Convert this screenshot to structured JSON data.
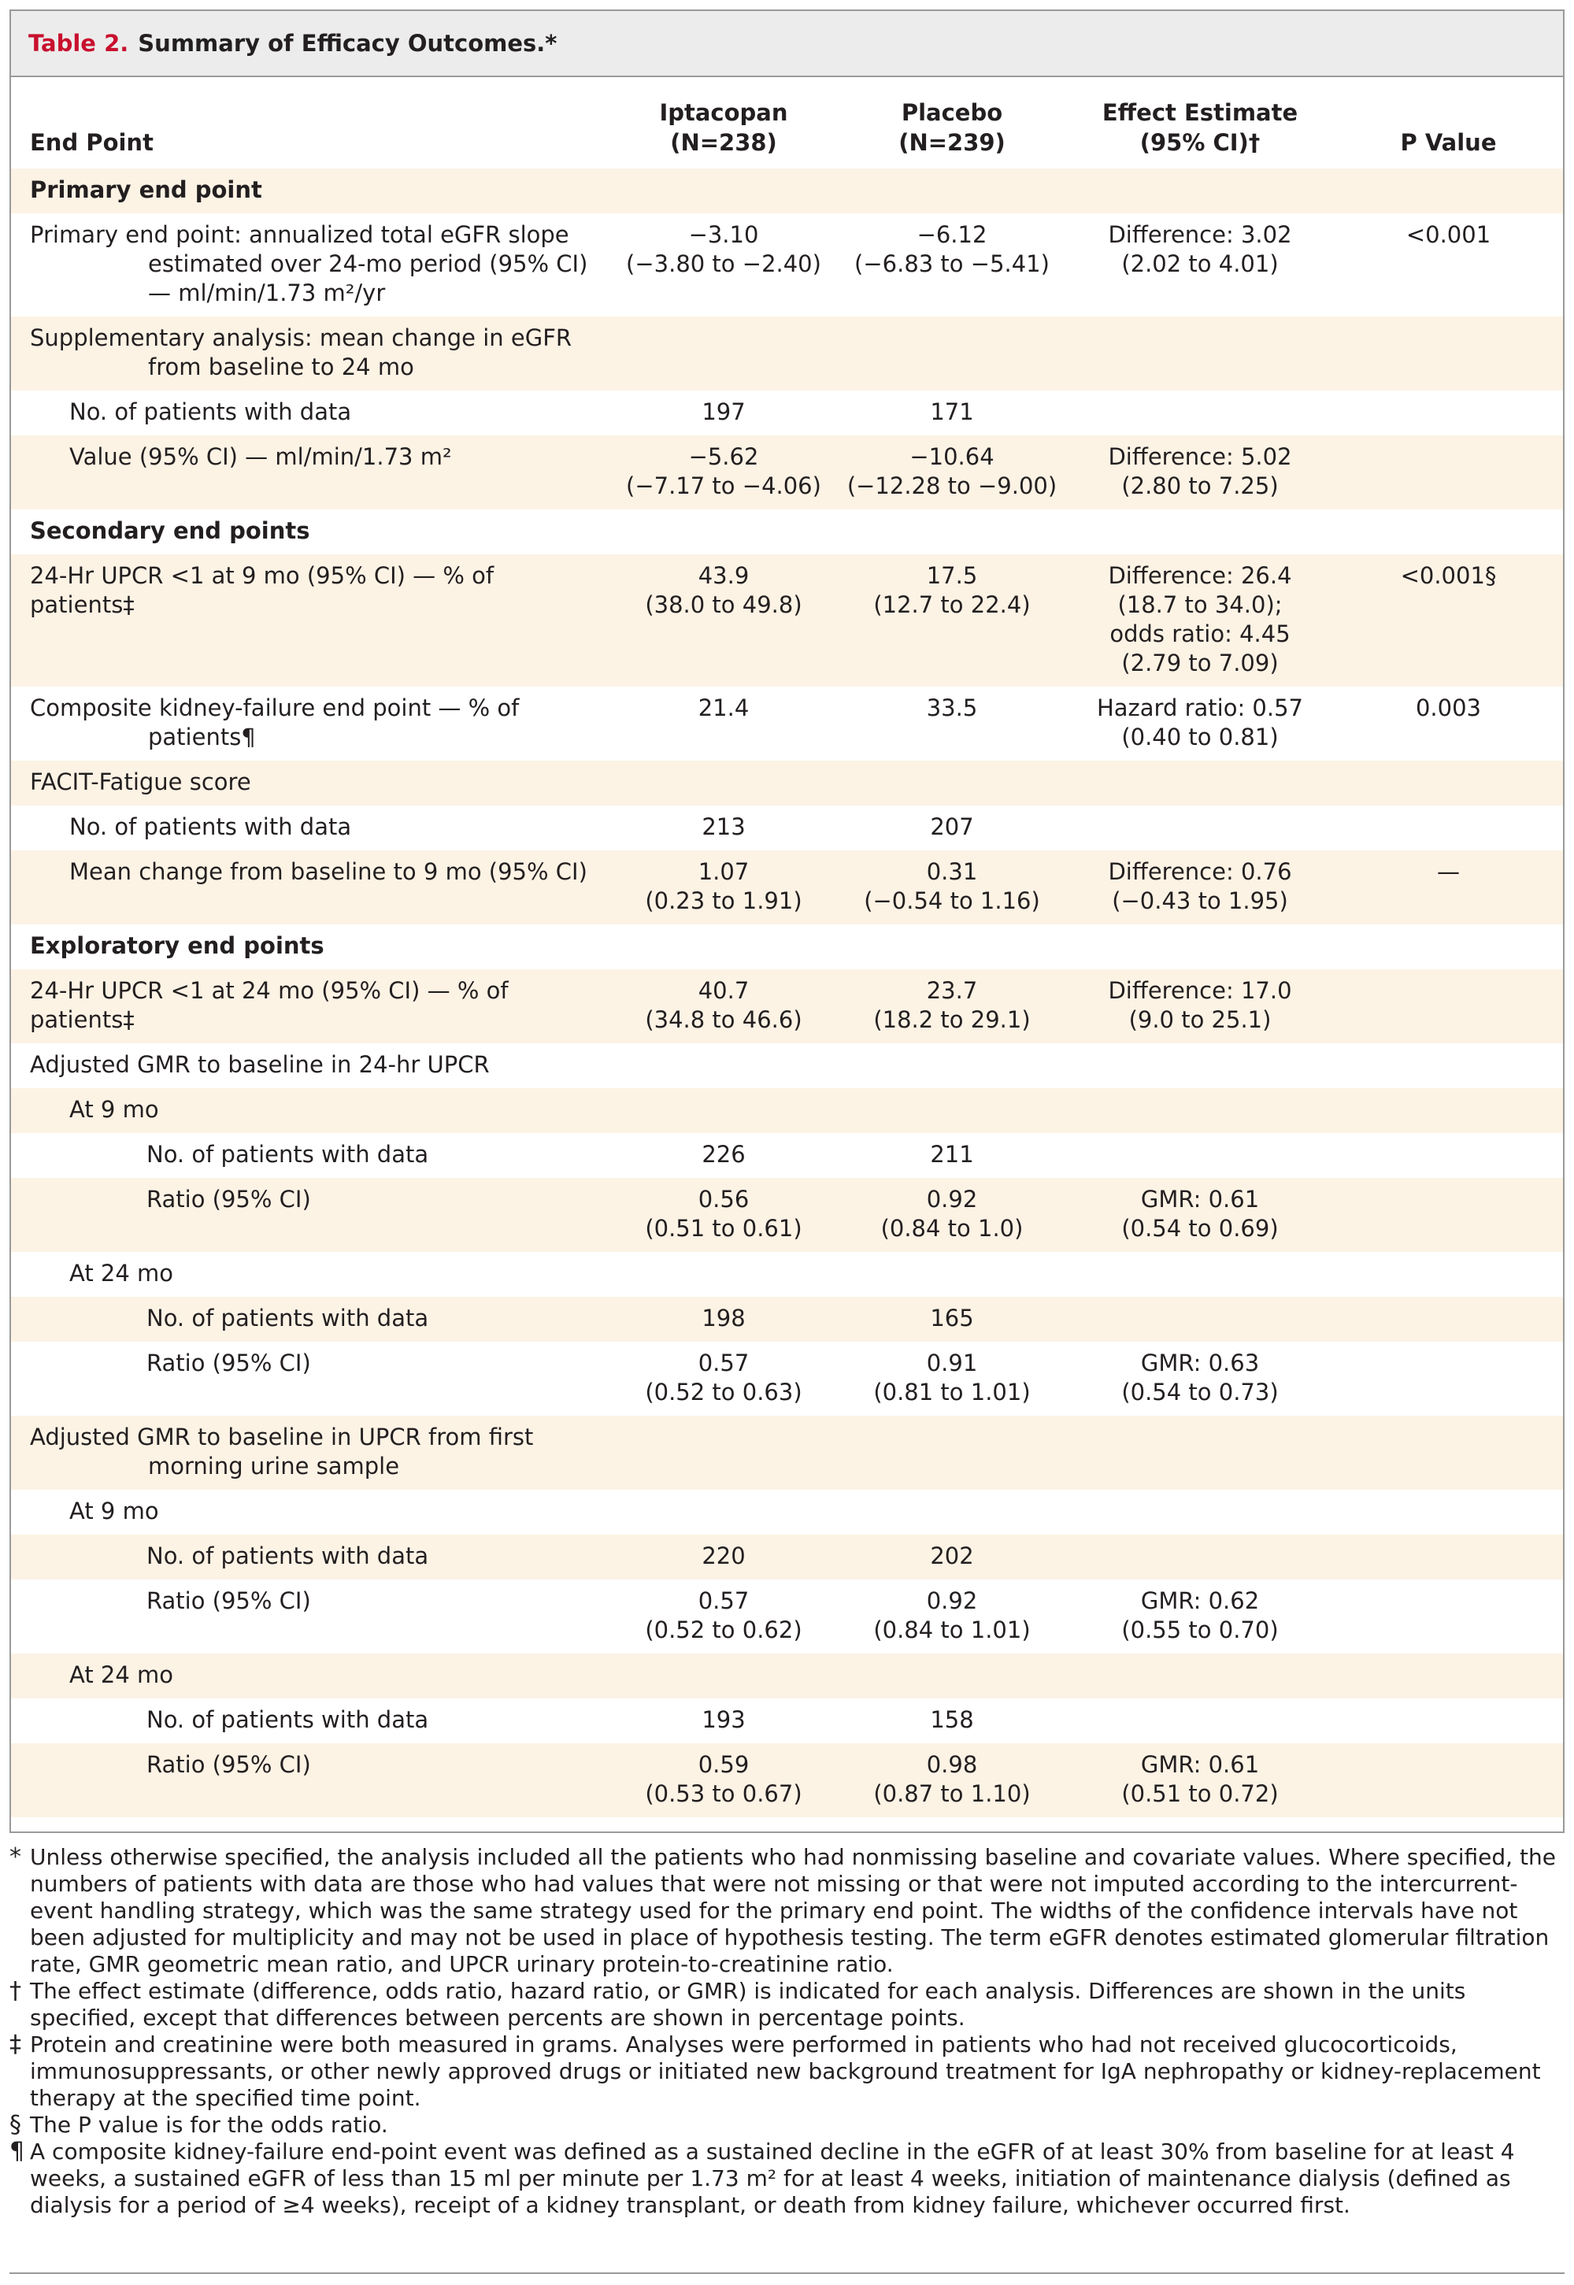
{
  "table": {
    "label": "Table 2.",
    "title": "Summary of Efficacy Outcomes.*",
    "headers": {
      "end_point": "End Point",
      "iptacopan": "Iptacopan",
      "iptacopan_n": "(N=238)",
      "placebo": "Placebo",
      "placebo_n": "(N=239)",
      "effect": "Effect Estimate",
      "effect_ci": "(95% CI)†",
      "pvalue": "P Value"
    },
    "rows": [
      {
        "label": "Primary end point",
        "section": true
      },
      {
        "label": "Primary end point: annualized total eGFR slope estimated over 24-mo period (95% CI) — ml/min/1.73 m²/yr",
        "ipt": "−3.10",
        "ipt_ci": "(−3.80 to −2.40)",
        "pla": "−6.12",
        "pla_ci": "(−6.83 to −5.41)",
        "eff": "Difference: 3.02",
        "eff_ci": "(2.02 to 4.01)",
        "p": "<0.001"
      },
      {
        "label": "Supplementary analysis: mean change in eGFR from baseline to 24 mo"
      },
      {
        "label": "No. of patients with data",
        "ipt": "197",
        "pla": "171"
      },
      {
        "label": "Value (95% CI) — ml/min/1.73 m²",
        "ipt": "−5.62",
        "ipt_ci": "(−7.17 to −4.06)",
        "pla": "−10.64",
        "pla_ci": "(−12.28 to −9.00)",
        "eff": "Difference: 5.02",
        "eff_ci": "(2.80 to 7.25)"
      },
      {
        "label": "Secondary end points",
        "section": true
      },
      {
        "label": "24-Hr UPCR <1 at 9 mo (95% CI) — % of patients‡",
        "ipt": "43.9",
        "ipt_ci": "(38.0 to 49.8)",
        "pla": "17.5",
        "pla_ci": "(12.7 to 22.4)",
        "eff": "Difference: 26.4",
        "eff_ci": "(18.7 to 34.0);",
        "eff_3": "odds ratio: 4.45",
        "eff_4": "(2.79 to 7.09)",
        "p": "<0.001§"
      },
      {
        "label": "Composite kidney-failure end point — % of patients¶",
        "ipt": "21.4",
        "pla": "33.5",
        "eff": "Hazard ratio: 0.57",
        "eff_ci": "(0.40 to 0.81)",
        "p": "0.003"
      },
      {
        "label": "FACIT-Fatigue score"
      },
      {
        "label": "No. of patients with data",
        "ipt": "213",
        "pla": "207"
      },
      {
        "label": "Mean change from baseline to 9 mo (95% CI)",
        "ipt": "1.07",
        "ipt_ci": "(0.23 to 1.91)",
        "pla": "0.31",
        "pla_ci": "(−0.54 to 1.16)",
        "eff": "Difference: 0.76",
        "eff_ci": "(−0.43 to 1.95)",
        "p": "—"
      },
      {
        "label": "Exploratory end points",
        "section": true
      },
      {
        "label": "24-Hr UPCR <1 at 24 mo (95% CI) — % of patients‡",
        "ipt": "40.7",
        "ipt_ci": "(34.8 to 46.6)",
        "pla": "23.7",
        "pla_ci": "(18.2 to 29.1)",
        "eff": "Difference: 17.0",
        "eff_ci": "(9.0 to 25.1)"
      },
      {
        "label": "Adjusted GMR to baseline in 24-hr UPCR"
      },
      {
        "label": "At 9 mo"
      },
      {
        "label": "No. of patients with data",
        "ipt": "226",
        "pla": "211"
      },
      {
        "label": "Ratio (95% CI)",
        "ipt": "0.56",
        "ipt_ci": "(0.51 to 0.61)",
        "pla": "0.92",
        "pla_ci": "(0.84 to 1.0)",
        "eff": "GMR: 0.61",
        "eff_ci": "(0.54 to 0.69)"
      },
      {
        "label": "At 24 mo"
      },
      {
        "label": "No. of patients with data",
        "ipt": "198",
        "pla": "165"
      },
      {
        "label": "Ratio (95% CI)",
        "ipt": "0.57",
        "ipt_ci": "(0.52 to 0.63)",
        "pla": "0.91",
        "pla_ci": "(0.81 to 1.01)",
        "eff": "GMR: 0.63",
        "eff_ci": "(0.54 to 0.73)"
      },
      {
        "label": "Adjusted GMR to baseline in UPCR from first morning urine sample"
      },
      {
        "label": "At 9 mo"
      },
      {
        "label": "No. of patients with data",
        "ipt": "220",
        "pla": "202"
      },
      {
        "label": "Ratio (95% CI)",
        "ipt": "0.57",
        "ipt_ci": "(0.52 to 0.62)",
        "pla": "0.92",
        "pla_ci": "(0.84 to 1.01)",
        "eff": "GMR: 0.62",
        "eff_ci": "(0.55 to 0.70)"
      },
      {
        "label": "At 24 mo"
      },
      {
        "label": "No. of patients with data",
        "ipt": "193",
        "pla": "158"
      },
      {
        "label": "Ratio (95% CI)",
        "ipt": "0.59",
        "ipt_ci": "(0.53 to 0.67)",
        "pla": "0.98",
        "pla_ci": "(0.87 to 1.10)",
        "eff": "GMR: 0.61",
        "eff_ci": "(0.51 to 0.72)"
      }
    ]
  },
  "footnotes": [
    {
      "mark": "*",
      "text": "Unless otherwise specified, the analysis included all the patients who had nonmissing baseline and covariate values. Where specified, the numbers of patients with data are those who had values that were not missing or that were not imputed according to the intercurrent-event handling strategy, which was the same strategy used for the primary end point. The widths of the confidence intervals have not been adjusted for multiplicity and may not be used in place of hypothesis testing. The term eGFR denotes estimated glomerular filtration rate, GMR geometric mean ratio, and UPCR urinary protein-to-creatinine ratio."
    },
    {
      "mark": "†",
      "text": "The effect estimate (difference, odds ratio, hazard ratio, or GMR) is indicated for each analysis. Differences are shown in the units specified, except that differences between percents are shown in percentage points."
    },
    {
      "mark": "‡",
      "text": "Protein and creatinine were both measured in grams. Analyses were performed in patients who had not received glucocorticoids, immunosuppressants, or other newly approved drugs or initiated new background treatment for IgA nephropathy or kidney-replacement therapy at the specified time point."
    },
    {
      "mark": "§",
      "text": "The P value is for the odds ratio."
    },
    {
      "mark": "¶",
      "text": "A composite kidney-failure end-point event was defined as a sustained decline in the eGFR of at least 30% from baseline for at least 4 weeks, a sustained eGFR of less than 15 ml per minute per 1.73 m² for at least 4 weeks, initiation of maintenance dialysis (defined as dialysis for a period of ≥4 weeks), receipt of a kidney transplant, or death from kidney failure, whichever occurred first."
    }
  ]
}
